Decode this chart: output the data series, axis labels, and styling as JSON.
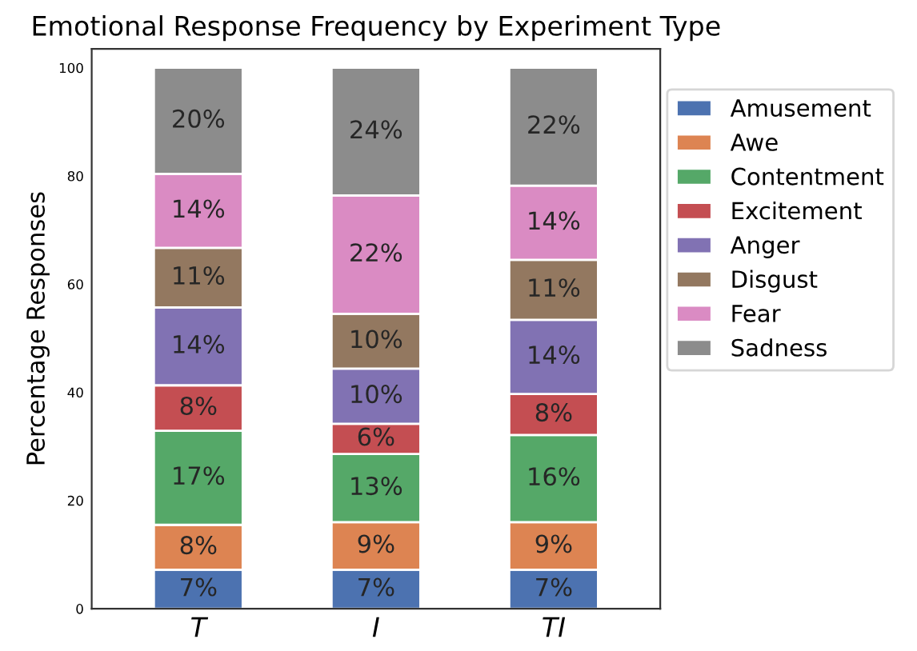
{
  "chart_data": {
    "type": "bar",
    "stacked": true,
    "title": "Emotional Response Frequency by Experiment Type",
    "ylabel": "Percentage Responses",
    "categories": [
      "T",
      "I",
      "TI"
    ],
    "series": [
      {
        "name": "Amusement",
        "color": "#4c72b0",
        "values": [
          7.2,
          7.2,
          7.2
        ],
        "value_labels": [
          "7%",
          "7%",
          "7%"
        ]
      },
      {
        "name": "Awe",
        "color": "#dd8452",
        "values": [
          8.3,
          8.8,
          8.8
        ],
        "value_labels": [
          "8%",
          "9%",
          "9%"
        ]
      },
      {
        "name": "Contentment",
        "color": "#55a868",
        "values": [
          17.4,
          12.6,
          16.1
        ],
        "value_labels": [
          "17%",
          "13%",
          "16%"
        ]
      },
      {
        "name": "Excitement",
        "color": "#c44e52",
        "values": [
          8.4,
          5.6,
          7.6
        ],
        "value_labels": [
          "8%",
          "6%",
          "8%"
        ]
      },
      {
        "name": "Anger",
        "color": "#8172b3",
        "values": [
          14.4,
          10.2,
          13.7
        ],
        "value_labels": [
          "14%",
          "10%",
          "14%"
        ]
      },
      {
        "name": "Disgust",
        "color": "#937860",
        "values": [
          11.0,
          10.1,
          11.1
        ],
        "value_labels": [
          "11%",
          "10%",
          "11%"
        ]
      },
      {
        "name": "Fear",
        "color": "#da8bc3",
        "values": [
          13.7,
          21.9,
          13.7
        ],
        "value_labels": [
          "14%",
          "22%",
          "14%"
        ]
      },
      {
        "name": "Sadness",
        "color": "#8c8c8c",
        "values": [
          19.6,
          23.6,
          21.8
        ],
        "value_labels": [
          "20%",
          "24%",
          "22%"
        ]
      }
    ],
    "ylim": [
      0,
      103.5
    ],
    "yticks": [
      0,
      20,
      40,
      60,
      80,
      100
    ],
    "grid": false,
    "legend": "top right"
  }
}
